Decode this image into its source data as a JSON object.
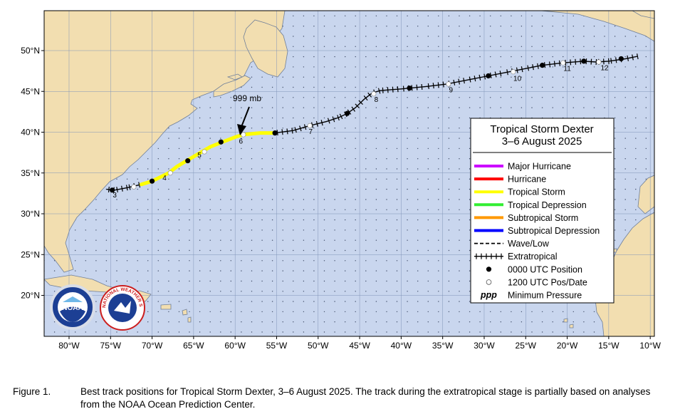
{
  "legend": {
    "title_line1": "Tropical Storm Dexter",
    "title_line2": "3–6 August 2025",
    "items": [
      {
        "label": "Major Hurricane",
        "kind": "line",
        "color": "#cc00ff"
      },
      {
        "label": "Hurricane",
        "kind": "line",
        "color": "#ff0000"
      },
      {
        "label": "Tropical Storm",
        "kind": "line",
        "color": "#ffff00"
      },
      {
        "label": "Tropical Depression",
        "kind": "line",
        "color": "#33ee33"
      },
      {
        "label": "Subtropical Storm",
        "kind": "line",
        "color": "#ff9900"
      },
      {
        "label": "Subtropical Depression",
        "kind": "line",
        "color": "#0000ff"
      },
      {
        "label": "Wave/Low",
        "kind": "dashed"
      },
      {
        "label": "Extratropical",
        "kind": "crosses"
      },
      {
        "label": "0000 UTC Position",
        "kind": "dot-black"
      },
      {
        "label": "1200 UTC Pos/Date",
        "kind": "dot-white"
      },
      {
        "label": "Minimum Pressure",
        "kind": "ppp",
        "symbol": "ppp"
      }
    ]
  },
  "annotation": {
    "pressure": "999 mb"
  },
  "axes": {
    "x_ticks": [
      "80°W",
      "75°W",
      "70°W",
      "65°W",
      "60°W",
      "55°W",
      "50°W",
      "45°W",
      "40°W",
      "35°W",
      "30°W",
      "25°W",
      "20°W",
      "15°W",
      "10°W"
    ],
    "y_ticks": [
      "50°N",
      "45°N",
      "40°N",
      "35°N",
      "30°N",
      "25°N",
      "20°N"
    ]
  },
  "track": {
    "segments": [
      {
        "stage": "extratropical",
        "points": [
          [
            -75.5,
            33.0
          ],
          [
            -74.5,
            32.9
          ],
          [
            -73.0,
            33.2
          ],
          [
            -71.3,
            33.6
          ]
        ]
      },
      {
        "stage": "tropical_storm",
        "points": [
          [
            -71.3,
            33.6
          ],
          [
            -70.0,
            34.0
          ],
          [
            -69.0,
            34.5
          ],
          [
            -68.0,
            35.0
          ],
          [
            -67.0,
            35.8
          ],
          [
            -66.0,
            36.4
          ],
          [
            -64.5,
            37.3
          ],
          [
            -63.0,
            38.2
          ],
          [
            -61.5,
            38.8
          ],
          [
            -60.0,
            39.4
          ],
          [
            -59.0,
            39.7
          ],
          [
            -57.0,
            39.9
          ],
          [
            -55.2,
            39.9
          ]
        ]
      },
      {
        "stage": "extratropical",
        "points": [
          [
            -55.2,
            39.9
          ],
          [
            -53.0,
            40.2
          ],
          [
            -51.0,
            40.8
          ],
          [
            -49.0,
            41.3
          ],
          [
            -47.5,
            41.8
          ],
          [
            -46.5,
            42.3
          ],
          [
            -45.5,
            43.0
          ],
          [
            -44.5,
            44.0
          ],
          [
            -43.5,
            44.8
          ],
          [
            -42.5,
            45.1
          ],
          [
            -40.0,
            45.3
          ],
          [
            -39.0,
            45.4
          ],
          [
            -37.0,
            45.6
          ],
          [
            -34.5,
            45.9
          ],
          [
            -32.0,
            46.4
          ],
          [
            -29.5,
            46.9
          ],
          [
            -27.5,
            47.3
          ],
          [
            -25.0,
            47.8
          ],
          [
            -23.0,
            48.2
          ],
          [
            -20.5,
            48.5
          ],
          [
            -18.0,
            48.7
          ],
          [
            -16.5,
            48.6
          ],
          [
            -15.0,
            48.7
          ],
          [
            -13.0,
            49.0
          ],
          [
            -11.5,
            49.3
          ]
        ]
      }
    ],
    "positions_0000": [
      [
        -74.8,
        32.9
      ],
      [
        -70.0,
        34.0
      ],
      [
        -65.7,
        36.5
      ],
      [
        -61.7,
        38.8
      ],
      [
        -55.2,
        39.9
      ],
      [
        -46.5,
        42.3
      ],
      [
        -39.0,
        45.4
      ],
      [
        -29.5,
        46.9
      ],
      [
        -23.0,
        48.2
      ],
      [
        -18.0,
        48.7
      ],
      [
        -13.5,
        49.0
      ]
    ],
    "positions_1200": [
      [
        -72.2,
        33.3
      ],
      [
        -67.8,
        35.0
      ],
      [
        -63.7,
        37.6
      ],
      [
        -59.0,
        39.7
      ],
      [
        -51.0,
        40.8
      ],
      [
        -43.3,
        44.7
      ],
      [
        -34.3,
        45.9
      ],
      [
        -26.5,
        47.4
      ],
      [
        -20.5,
        48.5
      ],
      [
        -16.2,
        48.6
      ]
    ],
    "date_labels": [
      {
        "text": "3",
        "lon": -74.5,
        "lat": 32.0
      },
      {
        "text": "4",
        "lon": -68.5,
        "lat": 34.1
      },
      {
        "text": "5",
        "lon": -64.3,
        "lat": 36.9
      },
      {
        "text": "6",
        "lon": -59.3,
        "lat": 38.6
      },
      {
        "text": "7",
        "lon": -50.9,
        "lat": 39.8
      },
      {
        "text": "8",
        "lon": -43.0,
        "lat": 43.7
      },
      {
        "text": "9",
        "lon": -34.0,
        "lat": 44.9
      },
      {
        "text": "10",
        "lon": -26.0,
        "lat": 46.3
      },
      {
        "text": "11",
        "lon": -20.0,
        "lat": 47.5
      },
      {
        "text": "12",
        "lon": -15.5,
        "lat": 47.6
      }
    ],
    "min_pressure_location": [
      -59.0,
      39.7
    ]
  },
  "colors": {
    "ocean": "#c9d6ee",
    "land": "#f2deb0",
    "tropical_storm": "#ffff00",
    "track_black": "#000000"
  },
  "logos": {
    "noaa_text": "NOAA",
    "nws_text": "NATIONAL WEATHER SERVICE"
  },
  "caption": {
    "number": "Figure 1.",
    "text": "Best track positions for Tropical Storm Dexter, 3–6 August 2025. The track during the extratropical stage is partially based on analyses from the NOAA Ocean Prediction Center."
  }
}
